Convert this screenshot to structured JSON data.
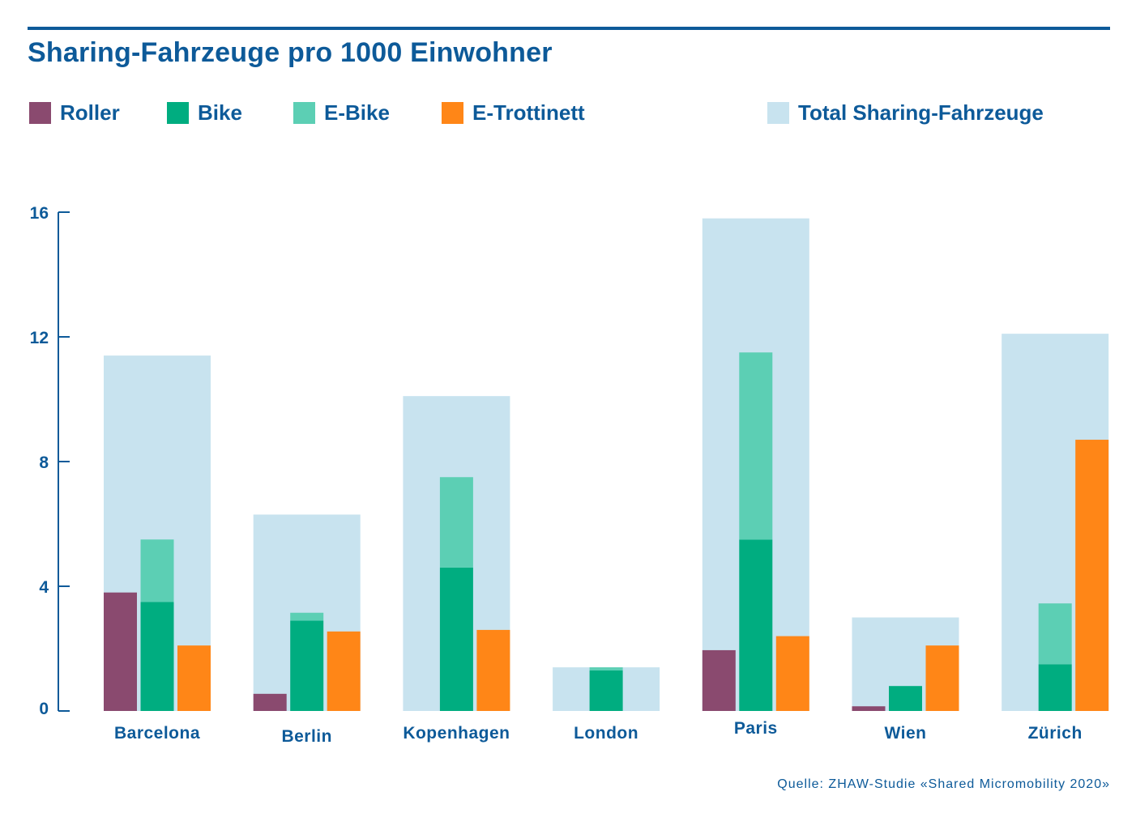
{
  "title": "Sharing-Fahrzeuge pro 1000 Einwohner",
  "source": "Quelle: ZHAW-Studie «Shared Micromobility 2020»",
  "colors": {
    "roller": "#8a4a6f",
    "bike": "#00ad80",
    "ebike": "#5ccfb4",
    "etrottinett": "#ff8617",
    "total": "#c8e3ef",
    "text": "#0d5a99"
  },
  "legend": [
    {
      "key": "roller",
      "label": "Roller"
    },
    {
      "key": "bike",
      "label": "Bike"
    },
    {
      "key": "ebike",
      "label": "E-Bike"
    },
    {
      "key": "etrottinett",
      "label": "E-Trottinett"
    },
    {
      "key": "total",
      "label": "Total Sharing-Fahrzeuge"
    }
  ],
  "chart_data": {
    "type": "bar",
    "title": "Sharing-Fahrzeuge pro 1000 Einwohner",
    "xlabel": "",
    "ylabel": "",
    "ylim": [
      0,
      16
    ],
    "yticks": [
      "0",
      "4",
      "8",
      "12",
      "16"
    ],
    "grid": false,
    "legend_position": "top",
    "categories": [
      "Barcelona",
      "Berlin",
      "Kopenhagen",
      "London",
      "Paris",
      "Wien",
      "Zürich"
    ],
    "series": [
      {
        "name": "Total Sharing-Fahrzeuge",
        "values": [
          11.4,
          6.3,
          10.1,
          1.4,
          15.8,
          3.0,
          12.1
        ]
      },
      {
        "name": "Roller",
        "values": [
          3.8,
          0.55,
          0,
          0,
          1.95,
          0.15,
          0
        ]
      },
      {
        "name": "Bike",
        "values": [
          3.5,
          2.9,
          4.6,
          1.3,
          5.5,
          0.8,
          1.5
        ]
      },
      {
        "name": "E-Bike",
        "values": [
          2.0,
          0.25,
          2.9,
          0.1,
          6.0,
          0,
          1.95
        ]
      },
      {
        "name": "E-Trottinett",
        "values": [
          2.1,
          2.55,
          2.6,
          0,
          2.4,
          2.1,
          8.7
        ]
      }
    ]
  }
}
